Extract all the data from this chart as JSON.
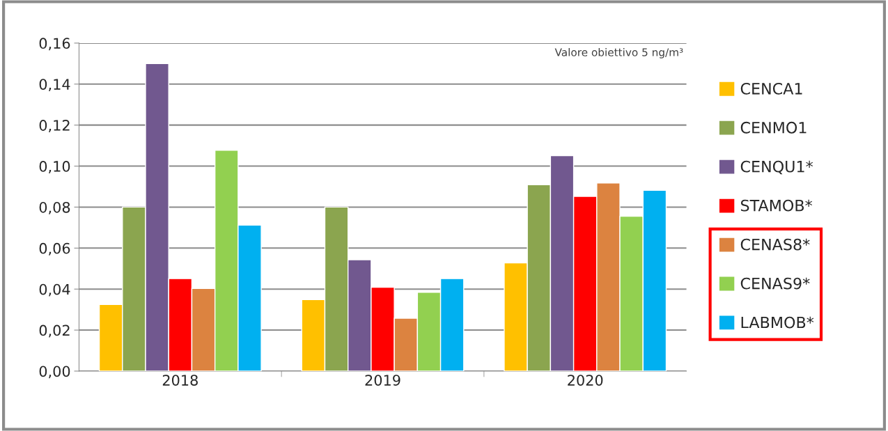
{
  "chart_data": {
    "type": "bar",
    "categories": [
      "2018",
      "2019",
      "2020"
    ],
    "series": [
      {
        "name": "CENCA1",
        "color": "#ffc000",
        "values": [
          0.0325,
          0.0349,
          0.0528
        ]
      },
      {
        "name": "CENMO1",
        "color": "#8ba54f",
        "values": [
          0.08,
          0.08,
          0.0909
        ]
      },
      {
        "name": "CENQU1*",
        "color": "#71588f",
        "values": [
          0.15,
          0.0543,
          0.1051
        ]
      },
      {
        "name": "STAMOB*",
        "color": "#ff0000",
        "values": [
          0.0451,
          0.0409,
          0.0852
        ]
      },
      {
        "name": "CENAS8*",
        "color": "#dc8340",
        "values": [
          0.0403,
          0.0258,
          0.0918
        ]
      },
      {
        "name": "CENAS9*",
        "color": "#92d050",
        "values": [
          0.1077,
          0.0384,
          0.0755
        ]
      },
      {
        "name": "LABMOB*",
        "color": "#00b0f0",
        "values": [
          0.0712,
          0.0451,
          0.0882
        ]
      }
    ],
    "ylim": [
      0,
      0.16
    ],
    "yticks": [
      {
        "value": 0,
        "label": "0,00"
      },
      {
        "value": 0.02,
        "label": "0,02"
      },
      {
        "value": 0.04,
        "label": "0,04"
      },
      {
        "value": 0.06,
        "label": "0,06"
      },
      {
        "value": 0.08,
        "label": "0,08"
      },
      {
        "value": 0.1,
        "label": "0,10"
      },
      {
        "value": 0.12,
        "label": "0,12"
      },
      {
        "value": 0.14,
        "label": "0,14"
      },
      {
        "value": 0.16,
        "label": "0,16"
      }
    ],
    "grid": "y",
    "legend": "right",
    "annotations": [
      "Valore obiettivo 5 ng/m³"
    ]
  }
}
